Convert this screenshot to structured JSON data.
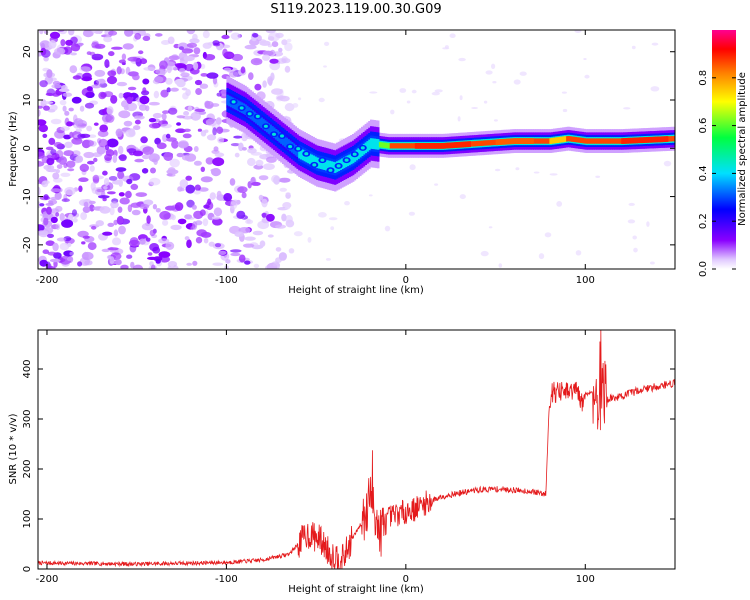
{
  "figure": {
    "title": "S119.2023.119.00.30.G09"
  },
  "chart_data": [
    {
      "type": "heatmap",
      "xlabel": "Height of straight line (km)",
      "ylabel": "Frequency (Hz)",
      "xlim": [
        -205,
        150
      ],
      "ylim": [
        -25,
        24.5
      ],
      "x_ticks": [
        -200,
        -100,
        0,
        100
      ],
      "y_ticks": [
        -20,
        -10,
        0,
        10,
        20
      ],
      "colorbar": {
        "label": "Normalized spectral amplitude",
        "range": [
          0,
          1
        ],
        "ticks": [
          "0.0",
          "0.2",
          "0.4",
          "0.6",
          "0.8"
        ],
        "tick_values": [
          0,
          0.2,
          0.4,
          0.6,
          0.8
        ],
        "colormap": [
          "#ffffff",
          "#e6ccff",
          "#7a00e6",
          "#0000ff",
          "#00ccff",
          "#00ff66",
          "#ffff00",
          "#ff8000",
          "#ff0000",
          "#ff0080"
        ]
      },
      "ridge": {
        "x": [
          -100,
          -90,
          -80,
          -70,
          -60,
          -50,
          -40,
          -30,
          -20,
          -10,
          0,
          20,
          40,
          60,
          80,
          90,
          100,
          120,
          150
        ],
        "y": [
          10,
          8,
          5,
          2,
          -1,
          -3,
          -4,
          -2,
          1,
          0.5,
          0.5,
          0.5,
          1,
          1.5,
          1.5,
          2,
          1.5,
          1.5,
          2
        ]
      },
      "noise_region_x": [
        -205,
        -70
      ]
    },
    {
      "type": "line",
      "xlabel": "Height of straight line (km)",
      "ylabel": "SNR (10 * v/v)",
      "xlim": [
        -205,
        150
      ],
      "ylim": [
        0,
        478
      ],
      "x_ticks": [
        -200,
        -100,
        0,
        100
      ],
      "y_ticks": [
        0,
        100,
        200,
        300,
        400
      ],
      "color": "#e41a1c",
      "series": [
        {
          "x": [
            -205,
            -150,
            -100,
            -80,
            -65,
            -55,
            -48,
            -42,
            -35,
            -30,
            -25,
            -20,
            -17,
            -15,
            -10,
            -5,
            0,
            5,
            10,
            20,
            30,
            40,
            50,
            60,
            70,
            78,
            80,
            82,
            90,
            95,
            98,
            100,
            105,
            108,
            109,
            110,
            112,
            120,
            130,
            140,
            150
          ],
          "y": [
            12,
            10,
            13,
            18,
            30,
            70,
            60,
            30,
            20,
            60,
            90,
            140,
            120,
            70,
            100,
            110,
            115,
            120,
            130,
            145,
            152,
            158,
            160,
            158,
            155,
            150,
            340,
            355,
            352,
            358,
            330,
            350,
            355,
            340,
            300,
            360,
            340,
            345,
            358,
            365,
            372
          ]
        }
      ]
    }
  ]
}
